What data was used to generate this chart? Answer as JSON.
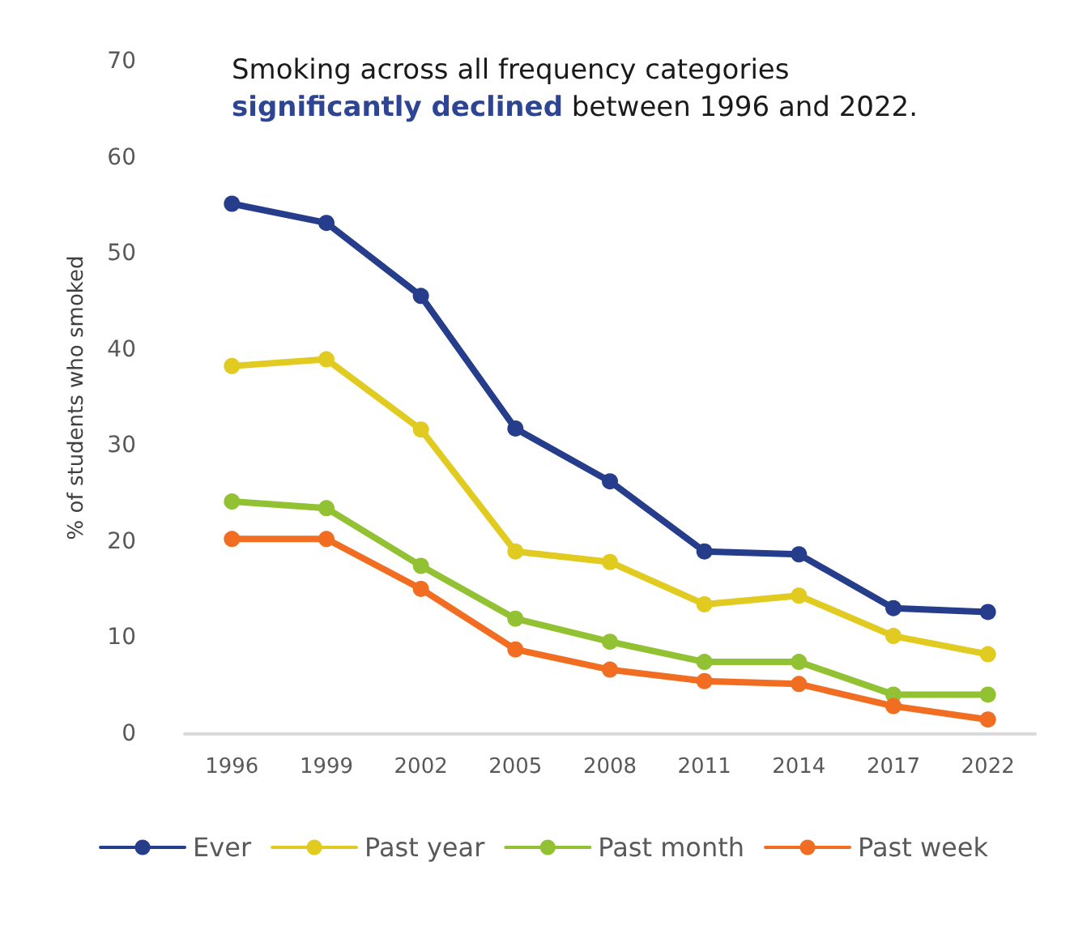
{
  "chart_data": {
    "type": "line",
    "title": "Smoking across all frequency categories",
    "subtitle": "significantly declined between 1996 and 2022.",
    "ylabel": "% of students who smoked",
    "categories": [
      "1996",
      "1999",
      "2002",
      "2005",
      "2008",
      "2011",
      "2014",
      "2017",
      "2022"
    ],
    "series": [
      {
        "name": "Ever",
        "color": "#253d8a",
        "values": [
          55.2,
          53.2,
          45.6,
          31.8,
          26.3,
          19.0,
          18.7,
          13.1,
          12.7
        ]
      },
      {
        "name": "Past year",
        "color": "#e1cb21",
        "values": [
          38.3,
          39.0,
          31.7,
          19.0,
          17.9,
          13.5,
          14.4,
          10.2,
          8.3
        ]
      },
      {
        "name": "Past month",
        "color": "#92c134",
        "values": [
          24.2,
          23.5,
          17.5,
          12.0,
          9.6,
          7.5,
          7.5,
          4.1,
          4.1
        ]
      },
      {
        "name": "Past week",
        "color": "#f06d22",
        "values": [
          20.3,
          20.3,
          15.1,
          8.8,
          6.7,
          5.5,
          5.2,
          2.9,
          1.5
        ]
      }
    ],
    "ylim": [
      0,
      70
    ],
    "yticks": [
      0,
      10,
      20,
      30,
      40,
      50,
      60,
      70
    ],
    "grid": false,
    "legend": "bottom",
    "marker": "circle",
    "line_style": "solid"
  }
}
